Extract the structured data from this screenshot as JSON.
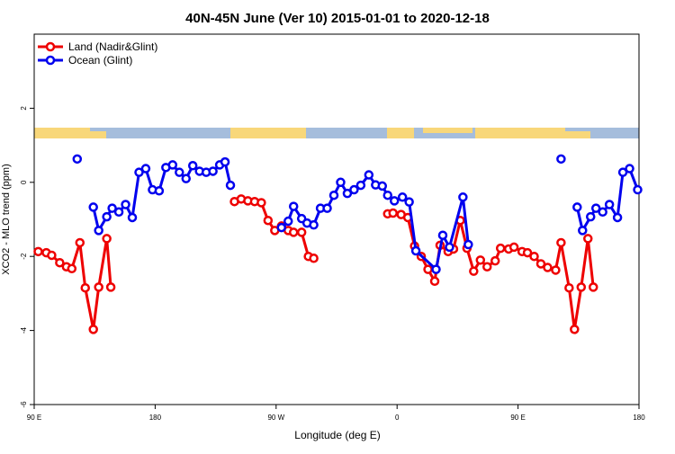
{
  "chart_data": {
    "type": "line",
    "title": "40N-45N June (Ver 10)   2015-01-01 to 2020-12-18",
    "x_label": "Longitude (deg E)",
    "y_label": "XCO2 - MLO trend (ppm)",
    "xlim": [
      90,
      540
    ],
    "xticks": [
      {
        "value": 90,
        "label": "90 E"
      },
      180,
      {
        "value": 270,
        "label": "90 W"
      },
      {
        "value": 360,
        "label": "0"
      },
      {
        "value": 450,
        "label": "90 E"
      },
      {
        "value": 540,
        "label": "180"
      }
    ],
    "ylim": [
      -6,
      4
    ],
    "yticks": [
      -6,
      -4,
      -2,
      0,
      2
    ],
    "legend": "top-left",
    "series": [
      {
        "name": "Land (Nadir&Glint)",
        "color": "#ee0000",
        "x": [
          93,
          99,
          103,
          109,
          114,
          118,
          124,
          128,
          134,
          138,
          144,
          147,
          null,
          239,
          244,
          249,
          254,
          259,
          264,
          269,
          274,
          279,
          283,
          289,
          294,
          298,
          null,
          353,
          357,
          363,
          368,
          373,
          378,
          383,
          388,
          392,
          398,
          402,
          407,
          412,
          417,
          422,
          427,
          433,
          437,
          443,
          447,
          453,
          457,
          462,
          467,
          472,
          478,
          482,
          488,
          492,
          497,
          502,
          506
        ],
        "values": [
          -1.87,
          -1.9,
          -1.97,
          -2.17,
          -2.28,
          -2.33,
          -1.63,
          -2.85,
          -3.97,
          -2.83,
          -1.52,
          -2.83,
          null,
          -0.52,
          -0.45,
          -0.5,
          -0.52,
          -0.55,
          -1.03,
          -1.3,
          -1.18,
          -1.3,
          -1.35,
          -1.35,
          -2.0,
          -2.05,
          null,
          -0.85,
          -0.83,
          -0.87,
          -0.95,
          -1.72,
          -2.0,
          -2.35,
          -2.67,
          -1.7,
          -1.87,
          -1.8,
          -1.03,
          -1.78,
          -2.4,
          -2.1,
          -2.28,
          -2.12,
          -1.78,
          -1.8,
          -1.75,
          -1.87,
          -1.9,
          -2.0,
          -2.2,
          -2.3,
          -2.37,
          -1.63,
          -2.85,
          -3.97,
          -2.83,
          -1.52,
          -2.83
        ]
      },
      {
        "name": "Ocean (Glint)",
        "color": "#0000ee",
        "x": [
          122,
          null,
          134,
          138,
          144,
          148,
          153,
          158,
          163,
          168,
          173,
          178,
          183,
          188,
          193,
          198,
          203,
          208,
          213,
          218,
          223,
          228,
          232,
          236,
          null,
          274,
          279,
          283,
          289,
          293,
          298,
          303,
          308,
          313,
          318,
          323,
          328,
          333,
          339,
          344,
          349,
          353,
          358,
          364,
          369,
          374,
          389,
          394,
          399,
          409,
          413,
          null,
          482,
          null,
          494,
          498,
          504,
          508,
          513,
          518,
          524,
          528,
          533,
          539
        ],
        "values": [
          0.63,
          null,
          -0.67,
          -1.3,
          -0.93,
          -0.7,
          -0.8,
          -0.6,
          -0.95,
          0.27,
          0.37,
          -0.2,
          -0.23,
          0.4,
          0.47,
          0.27,
          0.1,
          0.45,
          0.3,
          0.27,
          0.3,
          0.47,
          0.55,
          -0.08,
          null,
          -1.22,
          -1.05,
          -0.65,
          -0.98,
          -1.1,
          -1.15,
          -0.7,
          -0.7,
          -0.35,
          0.0,
          -0.3,
          -0.2,
          -0.08,
          0.2,
          -0.07,
          -0.1,
          -0.35,
          -0.5,
          -0.4,
          -0.53,
          -1.85,
          -2.35,
          -1.43,
          -1.75,
          -0.4,
          -1.68,
          null,
          0.63,
          null,
          -0.67,
          -1.3,
          -0.93,
          -0.7,
          -0.8,
          -0.6,
          -0.95,
          0.27,
          0.37,
          -0.2
        ]
      }
    ]
  }
}
